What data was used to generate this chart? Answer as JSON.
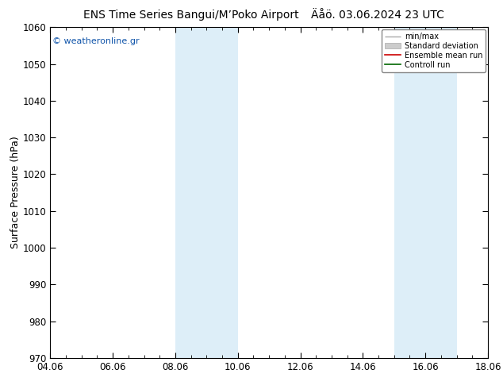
{
  "title_left": "ENS Time Series Bangui/M’Poko Airport",
  "title_right": "Äåö. 03.06.2024 23 UTC",
  "ylabel": "Surface Pressure (hPa)",
  "ylim": [
    970,
    1060
  ],
  "yticks": [
    970,
    980,
    990,
    1000,
    1010,
    1020,
    1030,
    1040,
    1050,
    1060
  ],
  "xlim": [
    4.06,
    18.06
  ],
  "xtick_vals": [
    4.06,
    6.06,
    8.06,
    10.06,
    12.06,
    14.06,
    16.06,
    18.06
  ],
  "xtick_labels": [
    "04.06",
    "06.06",
    "08.06",
    "10.06",
    "12.06",
    "14.06",
    "16.06",
    "18.06"
  ],
  "watermark": "© weatheronline.gr",
  "shaded_bands": [
    {
      "x_start": 8.06,
      "x_end": 10.06,
      "color": "#ddeef8"
    },
    {
      "x_start": 15.06,
      "x_end": 17.06,
      "color": "#ddeef8"
    }
  ],
  "legend_entries": [
    {
      "label": "min/max",
      "color": "#aaaaaa",
      "type": "errorbar"
    },
    {
      "label": "Standard deviation",
      "color": "#cccccc",
      "type": "band"
    },
    {
      "label": "Ensemble mean run",
      "color": "#cc0000",
      "type": "line"
    },
    {
      "label": "Controll run",
      "color": "#006600",
      "type": "line"
    }
  ],
  "background_color": "#ffffff",
  "plot_bg_color": "#ffffff",
  "title_fontsize": 10,
  "tick_fontsize": 8.5,
  "ylabel_fontsize": 9,
  "watermark_color": "#1155aa",
  "spine_color": "#000000"
}
